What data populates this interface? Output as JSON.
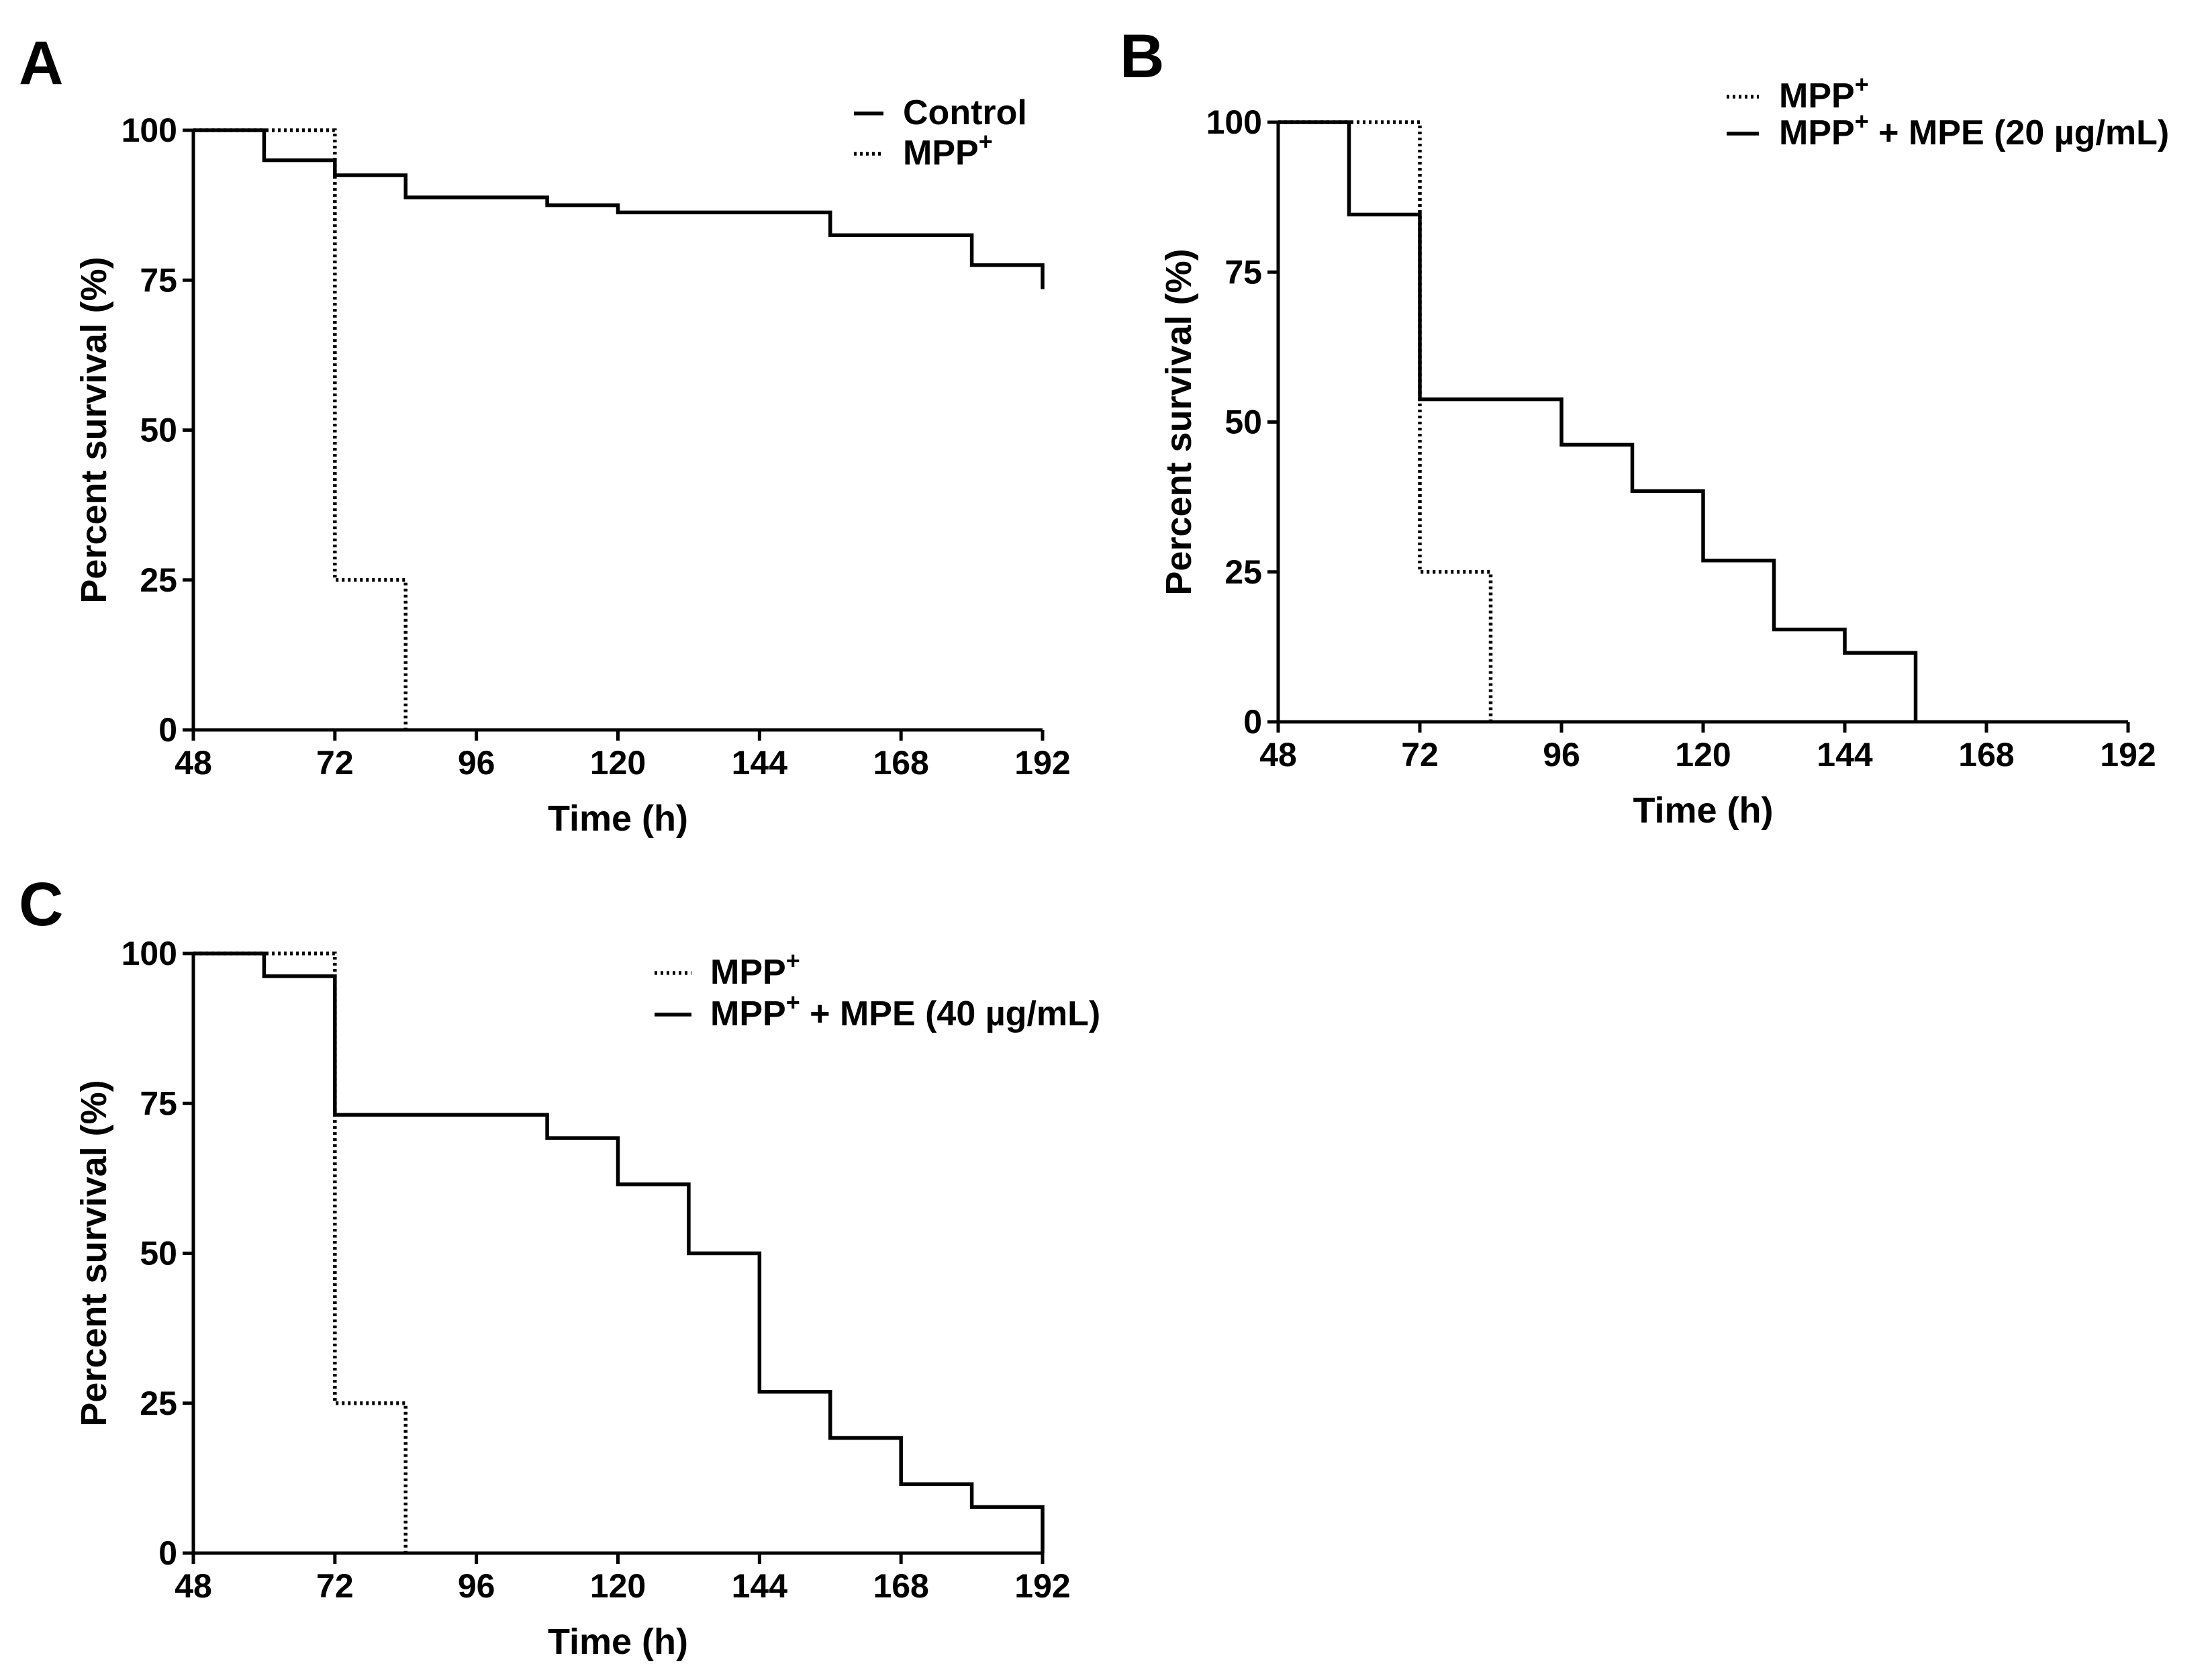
{
  "figure_title": "",
  "chart_data": [
    {
      "id": "A",
      "panel_label": "A",
      "type": "line",
      "subtype": "kaplan-meier step",
      "xlabel": "Time (h)",
      "ylabel": "Percent survival (%)",
      "xlim": [
        48,
        192
      ],
      "ylim": [
        0,
        100
      ],
      "xticks": [
        "48",
        "72",
        "96",
        "120",
        "144",
        "168",
        "192"
      ],
      "yticks": [
        "0",
        "25",
        "50",
        "75",
        "100"
      ],
      "legend_position": "top-right",
      "series": [
        {
          "name": "Control",
          "label_main": "Control",
          "label_sup": "",
          "label_rest": "",
          "style": "solid",
          "x": [
            48,
            60,
            72,
            84,
            108,
            120,
            156,
            180,
            192
          ],
          "y": [
            100,
            95,
            92.5,
            88.8,
            87.5,
            86.3,
            82.5,
            77.5,
            73.5
          ]
        },
        {
          "name": "MPP+",
          "label_main": "MPP",
          "label_sup": "+",
          "label_rest": "",
          "style": "dotted",
          "x": [
            48,
            72,
            84
          ],
          "y": [
            100,
            25,
            0
          ]
        }
      ]
    },
    {
      "id": "B",
      "panel_label": "B",
      "type": "line",
      "subtype": "kaplan-meier step",
      "xlabel": "Time (h)",
      "ylabel": "Percent survival (%)",
      "xlim": [
        48,
        192
      ],
      "ylim": [
        0,
        100
      ],
      "xticks": [
        "48",
        "72",
        "96",
        "120",
        "144",
        "168",
        "192"
      ],
      "yticks": [
        "0",
        "25",
        "50",
        "75",
        "100"
      ],
      "legend_position": "top-right",
      "series": [
        {
          "name": "MPP+",
          "label_main": "MPP",
          "label_sup": "+",
          "label_rest": "",
          "style": "dotted",
          "x": [
            48,
            72,
            84
          ],
          "y": [
            100,
            25,
            0
          ]
        },
        {
          "name": "MPP+ + MPE (20 µg/mL)",
          "label_main": "MPP",
          "label_sup": "+",
          "label_rest": " + MPE (20 µg/mL)",
          "style": "solid",
          "x": [
            48,
            60,
            72,
            96,
            108,
            120,
            132,
            144,
            156
          ],
          "y": [
            100,
            84.6,
            53.8,
            46.2,
            38.5,
            26.9,
            15.4,
            11.5,
            0
          ]
        }
      ]
    },
    {
      "id": "C",
      "panel_label": "C",
      "type": "line",
      "subtype": "kaplan-meier step",
      "xlabel": "Time (h)",
      "ylabel": "Percent survival (%)",
      "xlim": [
        48,
        192
      ],
      "ylim": [
        0,
        100
      ],
      "xticks": [
        "48",
        "72",
        "96",
        "120",
        "144",
        "168",
        "192"
      ],
      "yticks": [
        "0",
        "25",
        "50",
        "75",
        "100"
      ],
      "legend_position": "top-center",
      "series": [
        {
          "name": "MPP+",
          "label_main": "MPP",
          "label_sup": "+",
          "label_rest": "",
          "style": "dotted",
          "x": [
            48,
            72,
            84
          ],
          "y": [
            100,
            25,
            0
          ]
        },
        {
          "name": "MPP+ + MPE (40 µg/mL)",
          "label_main": "MPP",
          "label_sup": "+",
          "label_rest": " + MPE (40 µg/mL)",
          "style": "solid",
          "x": [
            48,
            60,
            72,
            108,
            120,
            132,
            144,
            156,
            168,
            180,
            192
          ],
          "y": [
            100,
            96.2,
            73.1,
            69.2,
            61.5,
            50,
            26.9,
            19.2,
            11.5,
            7.7,
            0
          ]
        }
      ]
    }
  ]
}
